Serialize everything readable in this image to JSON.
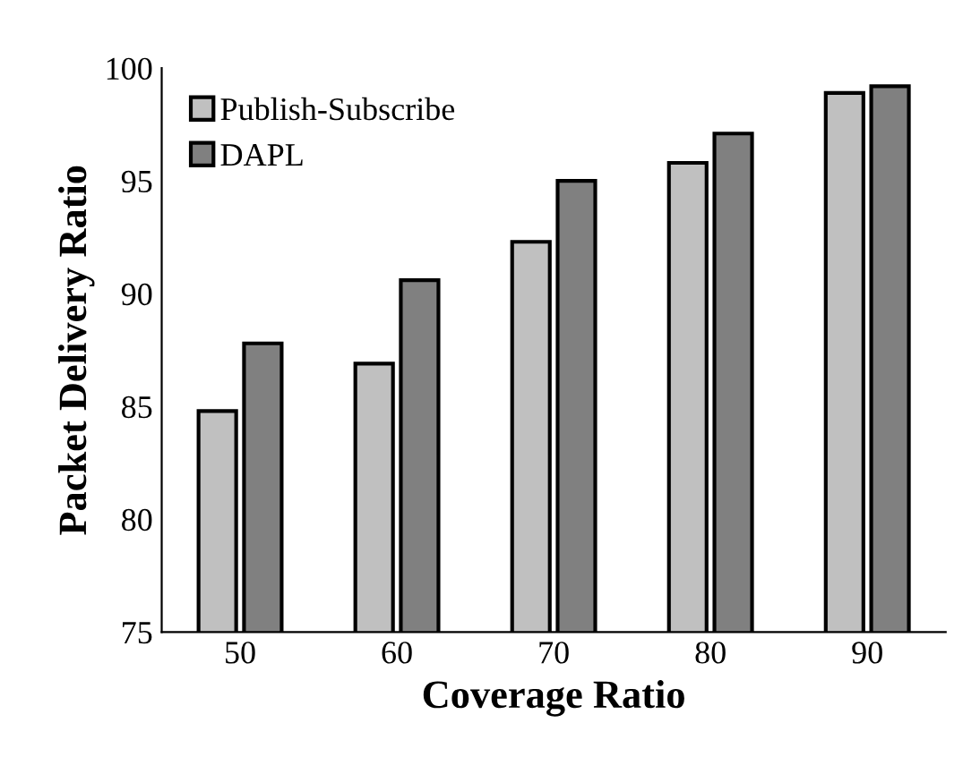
{
  "chart_data": {
    "type": "bar",
    "xlabel": "Coverage Ratio",
    "ylabel": "Packet Delivery Ratio",
    "categories": [
      "50",
      "60",
      "70",
      "80",
      "90"
    ],
    "series": [
      {
        "name": "Publish-Subscribe",
        "color": "#c0c0c0",
        "values": [
          84.8,
          86.9,
          92.3,
          95.8,
          98.9
        ]
      },
      {
        "name": "DAPL",
        "color": "#808080",
        "values": [
          87.8,
          90.6,
          95.0,
          97.1,
          99.2
        ]
      }
    ],
    "ylim": [
      75,
      100
    ],
    "yticks": [
      75,
      80,
      85,
      90,
      95,
      100
    ],
    "grid": false,
    "legend": "top left"
  }
}
